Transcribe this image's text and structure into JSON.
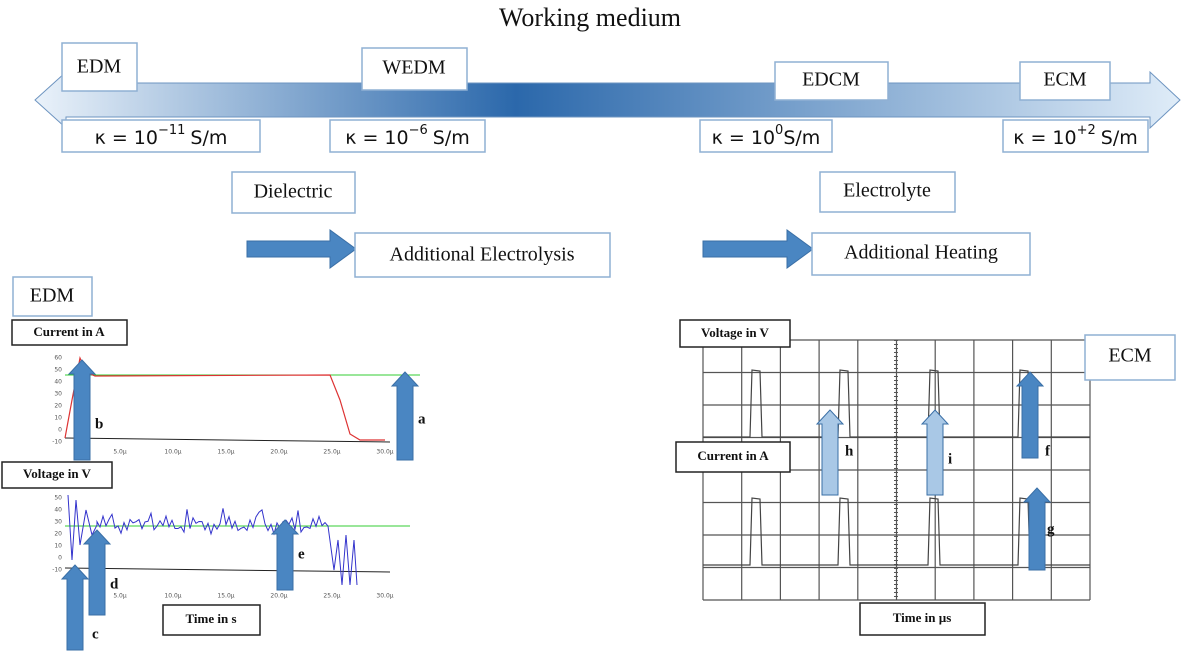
{
  "title": "Working medium",
  "scale": {
    "processes": [
      "EDM",
      "WEDM",
      "EDCM",
      "ECM"
    ],
    "conductivities": [
      {
        "symbol": "κ = 10",
        "exponent": "−11",
        "unit": "S/m"
      },
      {
        "symbol": "κ = 10",
        "exponent": "−6",
        "unit": "S/m"
      },
      {
        "symbol": "κ = 10",
        "exponent": "0",
        "unit": "S/m"
      },
      {
        "symbol": "κ = 10",
        "exponent": "+2",
        "unit": "S/m"
      }
    ]
  },
  "media": [
    "Dielectric",
    "Electrolyte"
  ],
  "effects": [
    "Additional Electrolysis",
    "Additional Heating"
  ],
  "edm_plot": {
    "label": "EDM",
    "current_axis": "Current in A",
    "voltage_axis": "Voltage in V",
    "time_axis": "Time in s",
    "current_ticks": [
      "60",
      "50",
      "40",
      "30",
      "20",
      "10",
      "0",
      "-10"
    ],
    "voltage_ticks": [
      "50",
      "40",
      "30",
      "20",
      "10",
      "0",
      "-10"
    ],
    "time_ticks": [
      "5.0µ",
      "10.0µ",
      "15.0µ",
      "20.0µ",
      "25.0µ",
      "30.0µ"
    ],
    "markers": [
      "a",
      "b",
      "c",
      "d",
      "e"
    ]
  },
  "ecm_plot": {
    "label": "ECM",
    "voltage_axis": "Voltage in V",
    "current_axis": "Current in A",
    "time_axis": "Time in µs",
    "markers": [
      "f",
      "g",
      "h",
      "i"
    ]
  }
}
